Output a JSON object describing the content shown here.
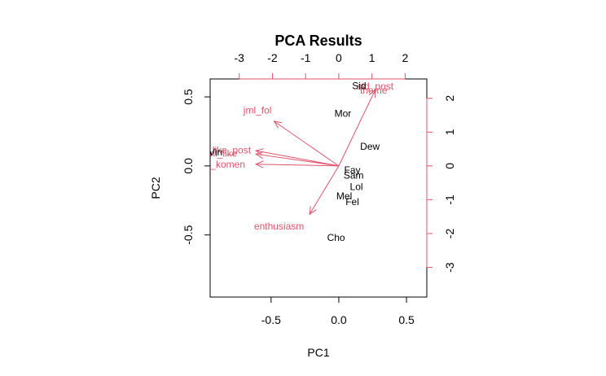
{
  "chart_data": {
    "type": "scatter",
    "subtype": "biplot",
    "title": "PCA Results",
    "xlabel": "PC1",
    "ylabel": "PC2",
    "xlim": [
      -0.95,
      0.65
    ],
    "ylim": [
      -0.95,
      0.63
    ],
    "x_ticks": [
      -0.5,
      0.0,
      0.5
    ],
    "y_ticks": [
      -0.5,
      0.0,
      0.5
    ],
    "x_ticks_top": [
      -3,
      -2,
      -1,
      0,
      1,
      2
    ],
    "y_ticks_right": [
      -3,
      -2,
      -1,
      0,
      1,
      2
    ],
    "secondary_scale": 0.245,
    "grid": false,
    "colors": {
      "points": "#000000",
      "loadings": "#DF536B",
      "axes": "#000000"
    },
    "points": [
      {
        "label": "Sid",
        "x": 0.15,
        "y": 0.58
      },
      {
        "label": "Mor",
        "x": 0.03,
        "y": 0.38
      },
      {
        "label": "Dew",
        "x": 0.23,
        "y": 0.14
      },
      {
        "label": "Vin",
        "x": -0.91,
        "y": 0.1
      },
      {
        "label": "Fay",
        "x": 0.1,
        "y": -0.03
      },
      {
        "label": "Sam",
        "x": 0.11,
        "y": -0.07
      },
      {
        "label": "Lol",
        "x": 0.13,
        "y": -0.15
      },
      {
        "label": "Mel",
        "x": 0.04,
        "y": -0.22
      },
      {
        "label": "Fel",
        "x": 0.1,
        "y": -0.26
      },
      {
        "label": "Cho",
        "x": -0.02,
        "y": -0.52
      }
    ],
    "loadings": [
      {
        "label": "sid_post",
        "x": 1.1,
        "y": 2.25,
        "lx": 1.1,
        "ly": 2.35
      },
      {
        "label": "theme",
        "x": 1.1,
        "y": 2.25,
        "lx": 1.05,
        "ly": 2.23
      },
      {
        "label": "jml_fol",
        "x": -1.95,
        "y": 1.32,
        "lx": -2.45,
        "ly": 1.65
      },
      {
        "label": "jml_like_post",
        "x": -2.5,
        "y": 0.45,
        "lx": -3.5,
        "ly": 0.47
      },
      {
        "label": "jml_like",
        "x": -2.5,
        "y": 0.35,
        "lx": -3.55,
        "ly": 0.37
      },
      {
        "label": "sbr_komen",
        "x": -2.5,
        "y": 0.05,
        "lx": -3.55,
        "ly": 0.05
      },
      {
        "label": "enthusiasm",
        "x": -0.88,
        "y": -1.43,
        "lx": -1.8,
        "ly": -1.78
      }
    ]
  }
}
